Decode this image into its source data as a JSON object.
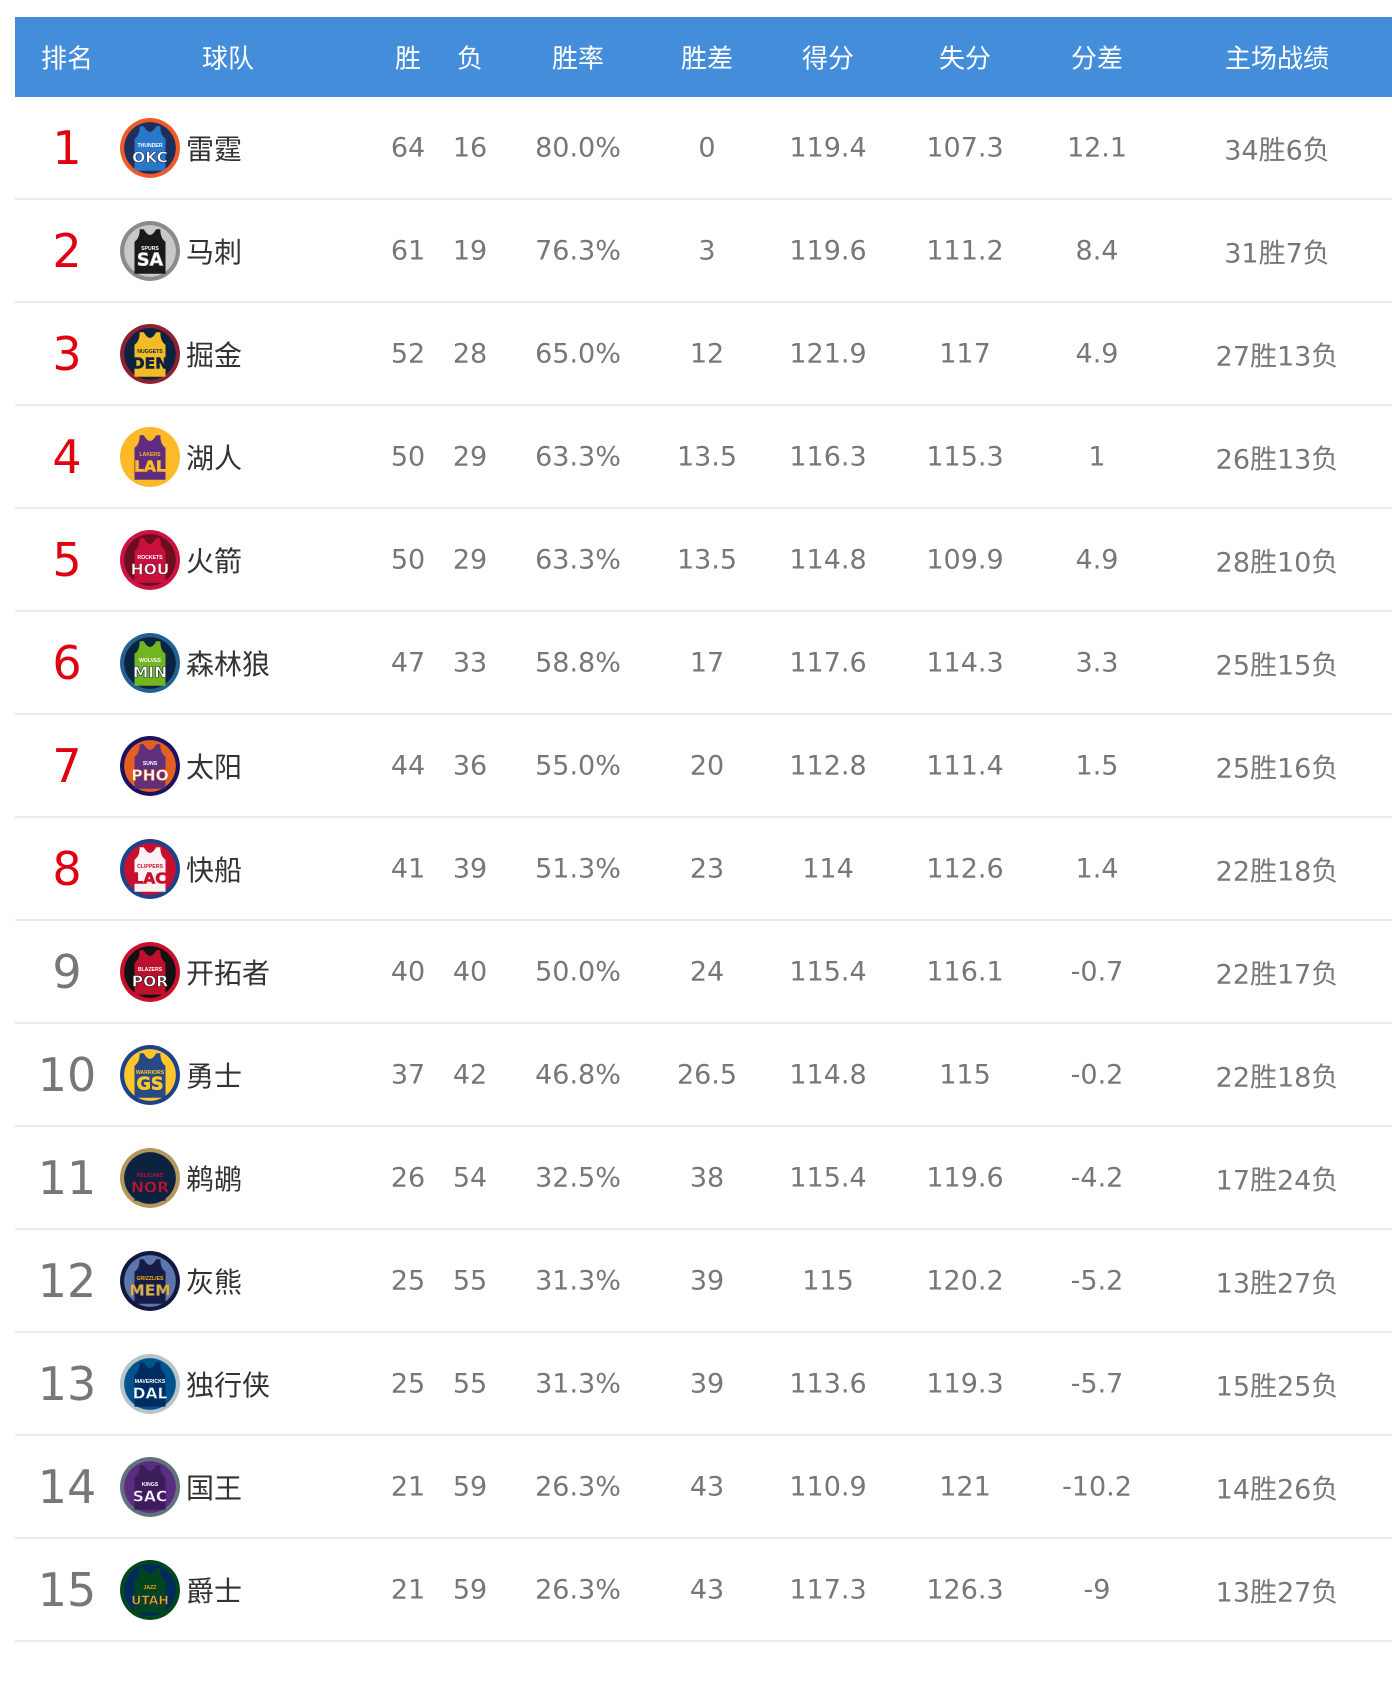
{
  "header": [
    "排名",
    "球队",
    "胜",
    "负",
    "胜率",
    "胜差",
    "得分",
    "失分",
    "分差",
    "主场战绩"
  ],
  "colors": {
    "header_bg": "#448ddb",
    "top_rank": "#e0000f",
    "text": "#777777"
  },
  "rows": [
    {
      "rank": "1",
      "team": "雷霆",
      "logo": {
        "abbr": "OKC",
        "name": "THUNDER",
        "ring": "#f05a28",
        "bg": "#1d2f5a",
        "jersey": "#2a7bd0",
        "text": "#ffffff"
      },
      "w": "64",
      "l": "16",
      "pct": "80.0%",
      "gb": "0",
      "pf": "119.4",
      "pa": "107.3",
      "diff": "12.1",
      "home": "34胜6负"
    },
    {
      "rank": "2",
      "team": "马刺",
      "logo": {
        "abbr": "SA",
        "name": "SPURS",
        "ring": "#8a8a8a",
        "bg": "#c8c8c8",
        "jersey": "#111111",
        "text": "#ffffff"
      },
      "w": "61",
      "l": "19",
      "pct": "76.3%",
      "gb": "3",
      "pf": "119.6",
      "pa": "111.2",
      "diff": "8.4",
      "home": "31胜7负"
    },
    {
      "rank": "3",
      "team": "掘金",
      "logo": {
        "abbr": "DEN",
        "name": "NUGGETS",
        "ring": "#8b2131",
        "bg": "#0e2240",
        "jersey": "#fec524",
        "text": "#0e2240"
      },
      "w": "52",
      "l": "28",
      "pct": "65.0%",
      "gb": "12",
      "pf": "121.9",
      "pa": "117",
      "diff": "4.9",
      "home": "27胜13负"
    },
    {
      "rank": "4",
      "team": "湖人",
      "logo": {
        "abbr": "LAL",
        "name": "LAKERS",
        "ring": "#fdb927",
        "bg": "#fdb927",
        "jersey": "#552583",
        "text": "#fdb927"
      },
      "w": "50",
      "l": "29",
      "pct": "63.3%",
      "gb": "13.5",
      "pf": "116.3",
      "pa": "115.3",
      "diff": "1",
      "home": "26胜13负"
    },
    {
      "rank": "5",
      "team": "火箭",
      "logo": {
        "abbr": "HOU",
        "name": "ROCKETS",
        "ring": "#ce1141",
        "bg": "#6b0f1f",
        "jersey": "#ce1141",
        "text": "#ffffff"
      },
      "w": "50",
      "l": "29",
      "pct": "63.3%",
      "gb": "13.5",
      "pf": "114.8",
      "pa": "109.9",
      "diff": "4.9",
      "home": "28胜10负"
    },
    {
      "rank": "6",
      "team": "森林狼",
      "logo": {
        "abbr": "MIN",
        "name": "WOLVES",
        "ring": "#236192",
        "bg": "#0c2340",
        "jersey": "#78be20",
        "text": "#ffffff"
      },
      "w": "47",
      "l": "33",
      "pct": "58.8%",
      "gb": "17",
      "pf": "117.6",
      "pa": "114.3",
      "diff": "3.3",
      "home": "25胜15负"
    },
    {
      "rank": "7",
      "team": "太阳",
      "logo": {
        "abbr": "PHO",
        "name": "SUNS",
        "ring": "#1d1160",
        "bg": "#e56020",
        "jersey": "#5a2d81",
        "text": "#ffffff"
      },
      "w": "44",
      "l": "36",
      "pct": "55.0%",
      "gb": "20",
      "pf": "112.8",
      "pa": "111.4",
      "diff": "1.5",
      "home": "25胜16负"
    },
    {
      "rank": "8",
      "team": "快船",
      "logo": {
        "abbr": "LAC",
        "name": "CLIPPERS",
        "ring": "#1d428a",
        "bg": "#c8102e",
        "jersey": "#ffffff",
        "text": "#c8102e"
      },
      "w": "41",
      "l": "39",
      "pct": "51.3%",
      "gb": "23",
      "pf": "114",
      "pa": "112.6",
      "diff": "1.4",
      "home": "22胜18负"
    },
    {
      "rank": "9",
      "team": "开拓者",
      "logo": {
        "abbr": "POR",
        "name": "BLAZERS",
        "ring": "#c8102e",
        "bg": "#111111",
        "jersey": "#c8102e",
        "text": "#ffffff"
      },
      "w": "40",
      "l": "40",
      "pct": "50.0%",
      "gb": "24",
      "pf": "115.4",
      "pa": "116.1",
      "diff": "-0.7",
      "home": "22胜17负"
    },
    {
      "rank": "10",
      "team": "勇士",
      "logo": {
        "abbr": "GS",
        "name": "WARRIORS",
        "ring": "#1d428a",
        "bg": "#ffc72c",
        "jersey": "#1d428a",
        "text": "#ffc72c"
      },
      "w": "37",
      "l": "42",
      "pct": "46.8%",
      "gb": "26.5",
      "pf": "114.8",
      "pa": "115",
      "diff": "-0.2",
      "home": "22胜18负"
    },
    {
      "rank": "11",
      "team": "鹈鹕",
      "logo": {
        "abbr": "NOR",
        "name": "PELICANS",
        "ring": "#b4975a",
        "bg": "#0c2340",
        "jersey": "#0c2340",
        "text": "#c8102e"
      },
      "w": "26",
      "l": "54",
      "pct": "32.5%",
      "gb": "38",
      "pf": "115.4",
      "pa": "119.6",
      "diff": "-4.2",
      "home": "17胜24负"
    },
    {
      "rank": "12",
      "team": "灰熊",
      "logo": {
        "abbr": "MEM",
        "name": "GRIZZLIES",
        "ring": "#12173f",
        "bg": "#5d76a9",
        "jersey": "#12173f",
        "text": "#f5b112"
      },
      "w": "25",
      "l": "55",
      "pct": "31.3%",
      "gb": "39",
      "pf": "115",
      "pa": "120.2",
      "diff": "-5.2",
      "home": "13胜27负"
    },
    {
      "rank": "13",
      "team": "独行侠",
      "logo": {
        "abbr": "DAL",
        "name": "MAVERICKS",
        "ring": "#b8c4ca",
        "bg": "#00538c",
        "jersey": "#002b5e",
        "text": "#ffffff"
      },
      "w": "25",
      "l": "55",
      "pct": "31.3%",
      "gb": "39",
      "pf": "113.6",
      "pa": "119.3",
      "diff": "-5.7",
      "home": "15胜25负"
    },
    {
      "rank": "14",
      "team": "国王",
      "logo": {
        "abbr": "SAC",
        "name": "KINGS",
        "ring": "#63727a",
        "bg": "#5a2d81",
        "jersey": "#3b1c5a",
        "text": "#ffffff"
      },
      "w": "21",
      "l": "59",
      "pct": "26.3%",
      "gb": "43",
      "pf": "110.9",
      "pa": "121",
      "diff": "-10.2",
      "home": "14胜26负"
    },
    {
      "rank": "15",
      "team": "爵士",
      "logo": {
        "abbr": "UTAH",
        "name": "JAZZ",
        "ring": "#00471b",
        "bg": "#002b5c",
        "jersey": "#00471b",
        "text": "#f9a01b"
      },
      "w": "21",
      "l": "59",
      "pct": "26.3%",
      "gb": "43",
      "pf": "117.3",
      "pa": "126.3",
      "diff": "-9",
      "home": "13胜27负"
    }
  ]
}
